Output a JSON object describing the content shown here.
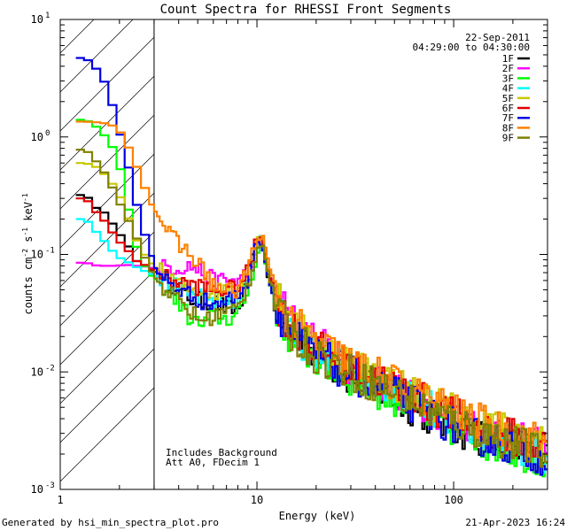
{
  "chart_data": {
    "type": "line",
    "title": "Count Spectra for RHESSI Front Segments",
    "xlabel": "Energy (keV)",
    "ylabel": "counts cm^-2 s^-1 keV^-1",
    "xscale": "log",
    "yscale": "log",
    "xlim": [
      1,
      300
    ],
    "ylim": [
      0.001,
      10
    ],
    "x_ticks": [
      {
        "value": 1,
        "label": "1"
      },
      {
        "value": 10,
        "label": "10"
      },
      {
        "value": 100,
        "label": "100"
      }
    ],
    "y_ticks": [
      {
        "value": 0.001,
        "base": "10",
        "exp": "-3"
      },
      {
        "value": 0.01,
        "base": "10",
        "exp": "-2"
      },
      {
        "value": 0.1,
        "base": "10",
        "exp": "-1"
      },
      {
        "value": 1,
        "base": "10",
        "exp": "0"
      },
      {
        "value": 10,
        "base": "10",
        "exp": "1"
      }
    ],
    "shaded_region_kev": [
      1,
      3
    ],
    "date": "22-Sep-2011",
    "time_range": "04:29:00 to 04:30:00",
    "annotations": [
      "Includes Background",
      "Att A0, FDecim 1"
    ],
    "series": [
      {
        "name": "1F",
        "color": "#000000",
        "low": [
          [
            1.2,
            0.32
          ],
          [
            1.35,
            0.32
          ],
          [
            1.55,
            0.24
          ],
          [
            1.75,
            0.22
          ],
          [
            1.95,
            0.15
          ],
          [
            2.15,
            0.14
          ],
          [
            2.35,
            0.09
          ],
          [
            2.6,
            0.085
          ],
          [
            2.8,
            0.075
          ],
          [
            3.1,
            0.07
          ],
          [
            3.5,
            0.06
          ],
          [
            4,
            0.05
          ],
          [
            4.6,
            0.042
          ],
          [
            5.3,
            0.04
          ],
          [
            6,
            0.04
          ],
          [
            7,
            0.035
          ],
          [
            8,
            0.033
          ],
          [
            9,
            0.06
          ],
          [
            10,
            0.12
          ],
          [
            10.6,
            0.13
          ],
          [
            11.5,
            0.06
          ],
          [
            13,
            0.03
          ],
          [
            15,
            0.02
          ],
          [
            20,
            0.014
          ],
          [
            30,
            0.009
          ],
          [
            50,
            0.006
          ],
          [
            80,
            0.004
          ],
          [
            120,
            0.003
          ],
          [
            200,
            0.0023
          ],
          [
            290,
            0.002
          ]
        ]
      },
      {
        "name": "2F",
        "color": "#ff00ff",
        "low": [
          [
            1.2,
            0.085
          ],
          [
            1.35,
            0.085
          ],
          [
            1.55,
            0.08
          ],
          [
            1.75,
            0.08
          ],
          [
            1.95,
            0.08
          ],
          [
            2.15,
            0.082
          ],
          [
            2.35,
            0.08
          ],
          [
            2.6,
            0.08
          ],
          [
            2.8,
            0.078
          ],
          [
            3.1,
            0.075
          ],
          [
            3.5,
            0.078
          ],
          [
            4,
            0.078
          ],
          [
            4.6,
            0.08
          ],
          [
            5.3,
            0.07
          ],
          [
            6,
            0.06
          ],
          [
            7,
            0.06
          ],
          [
            8,
            0.06
          ],
          [
            9,
            0.07
          ],
          [
            10,
            0.12
          ],
          [
            10.6,
            0.14
          ],
          [
            11.5,
            0.07
          ],
          [
            13,
            0.04
          ],
          [
            15,
            0.028
          ],
          [
            20,
            0.018
          ],
          [
            30,
            0.011
          ],
          [
            50,
            0.007
          ],
          [
            80,
            0.0048
          ],
          [
            120,
            0.0036
          ],
          [
            200,
            0.0027
          ],
          [
            290,
            0.0022
          ]
        ]
      },
      {
        "name": "3F",
        "color": "#00ff00",
        "low": [
          [
            1.2,
            1.4
          ],
          [
            1.35,
            1.4
          ],
          [
            1.55,
            1.2
          ],
          [
            1.75,
            0.95
          ],
          [
            1.95,
            0.7
          ],
          [
            2.15,
            0.35
          ],
          [
            2.35,
            0.14
          ],
          [
            2.6,
            0.09
          ],
          [
            2.8,
            0.07
          ],
          [
            3.1,
            0.06
          ],
          [
            3.5,
            0.05
          ],
          [
            4,
            0.04
          ],
          [
            4.6,
            0.028
          ],
          [
            5.3,
            0.025
          ],
          [
            6,
            0.03
          ],
          [
            7,
            0.028
          ],
          [
            8,
            0.03
          ],
          [
            9,
            0.05
          ],
          [
            10,
            0.1
          ],
          [
            10.6,
            0.12
          ],
          [
            11.5,
            0.06
          ],
          [
            13,
            0.03
          ],
          [
            15,
            0.019
          ],
          [
            20,
            0.013
          ],
          [
            30,
            0.009
          ],
          [
            50,
            0.006
          ],
          [
            80,
            0.004
          ],
          [
            120,
            0.0028
          ],
          [
            200,
            0.0022
          ],
          [
            290,
            0.0018
          ]
        ]
      },
      {
        "name": "4F",
        "color": "#00ffff",
        "low": [
          [
            1.2,
            0.2
          ],
          [
            1.35,
            0.2
          ],
          [
            1.55,
            0.15
          ],
          [
            1.75,
            0.12
          ],
          [
            1.95,
            0.095
          ],
          [
            2.15,
            0.09
          ],
          [
            2.35,
            0.08
          ],
          [
            2.6,
            0.075
          ],
          [
            2.8,
            0.07
          ],
          [
            3.1,
            0.065
          ],
          [
            3.5,
            0.06
          ],
          [
            4,
            0.05
          ],
          [
            4.6,
            0.045
          ],
          [
            5.3,
            0.042
          ],
          [
            6,
            0.04
          ],
          [
            7,
            0.04
          ],
          [
            8,
            0.042
          ],
          [
            9,
            0.065
          ],
          [
            10,
            0.13
          ],
          [
            10.6,
            0.15
          ],
          [
            11.5,
            0.065
          ],
          [
            13,
            0.034
          ],
          [
            15,
            0.022
          ],
          [
            20,
            0.015
          ],
          [
            30,
            0.01
          ],
          [
            50,
            0.0068
          ],
          [
            80,
            0.0046
          ],
          [
            120,
            0.0034
          ],
          [
            200,
            0.0025
          ],
          [
            290,
            0.002
          ]
        ]
      },
      {
        "name": "5F",
        "color": "#c8c800",
        "low": [
          [
            1.2,
            0.6
          ],
          [
            1.35,
            0.6
          ],
          [
            1.55,
            0.55
          ],
          [
            1.75,
            0.45
          ],
          [
            1.95,
            0.35
          ],
          [
            2.15,
            0.25
          ],
          [
            2.35,
            0.15
          ],
          [
            2.6,
            0.11
          ],
          [
            2.8,
            0.09
          ],
          [
            3.1,
            0.075
          ],
          [
            3.5,
            0.065
          ],
          [
            4,
            0.055
          ],
          [
            4.6,
            0.05
          ],
          [
            5.3,
            0.05
          ],
          [
            6,
            0.048
          ],
          [
            7,
            0.05
          ],
          [
            8,
            0.055
          ],
          [
            9,
            0.08
          ],
          [
            10,
            0.13
          ],
          [
            10.6,
            0.15
          ],
          [
            11.5,
            0.075
          ],
          [
            13,
            0.04
          ],
          [
            15,
            0.026
          ],
          [
            20,
            0.017
          ],
          [
            30,
            0.012
          ],
          [
            50,
            0.008
          ],
          [
            80,
            0.0055
          ],
          [
            120,
            0.004
          ],
          [
            200,
            0.003
          ],
          [
            290,
            0.0024
          ]
        ]
      },
      {
        "name": "6F",
        "color": "#e00000",
        "low": [
          [
            1.2,
            0.3
          ],
          [
            1.35,
            0.3
          ],
          [
            1.55,
            0.22
          ],
          [
            1.75,
            0.18
          ],
          [
            1.95,
            0.13
          ],
          [
            2.15,
            0.12
          ],
          [
            2.35,
            0.09
          ],
          [
            2.6,
            0.085
          ],
          [
            2.8,
            0.078
          ],
          [
            3.1,
            0.07
          ],
          [
            3.5,
            0.062
          ],
          [
            4,
            0.058
          ],
          [
            4.6,
            0.055
          ],
          [
            5.3,
            0.052
          ],
          [
            6,
            0.05
          ],
          [
            7,
            0.05
          ],
          [
            8,
            0.052
          ],
          [
            9,
            0.07
          ],
          [
            10,
            0.13
          ],
          [
            10.6,
            0.145
          ],
          [
            11.5,
            0.07
          ],
          [
            13,
            0.036
          ],
          [
            15,
            0.024
          ],
          [
            20,
            0.016
          ],
          [
            30,
            0.011
          ],
          [
            50,
            0.0075
          ],
          [
            80,
            0.005
          ],
          [
            120,
            0.0037
          ],
          [
            200,
            0.0028
          ],
          [
            290,
            0.0023
          ]
        ]
      },
      {
        "name": "7F",
        "color": "#0000e0",
        "low": [
          [
            1.2,
            4.7
          ],
          [
            1.35,
            4.7
          ],
          [
            1.55,
            3.7
          ],
          [
            1.75,
            2.6
          ],
          [
            1.95,
            1.3
          ],
          [
            2.15,
            0.75
          ],
          [
            2.35,
            0.35
          ],
          [
            2.6,
            0.18
          ],
          [
            2.8,
            0.12
          ],
          [
            3.1,
            0.07
          ],
          [
            3.5,
            0.06
          ],
          [
            4,
            0.05
          ],
          [
            4.6,
            0.045
          ],
          [
            5.3,
            0.04
          ],
          [
            6,
            0.038
          ],
          [
            7,
            0.04
          ],
          [
            8,
            0.045
          ],
          [
            9,
            0.06
          ],
          [
            10,
            0.12
          ],
          [
            10.6,
            0.13
          ],
          [
            11.5,
            0.06
          ],
          [
            13,
            0.032
          ],
          [
            15,
            0.021
          ],
          [
            20,
            0.014
          ],
          [
            30,
            0.0095
          ],
          [
            50,
            0.0065
          ],
          [
            80,
            0.0042
          ],
          [
            120,
            0.003
          ],
          [
            200,
            0.0023
          ],
          [
            290,
            0.0019
          ]
        ]
      },
      {
        "name": "8F",
        "color": "#ff8000",
        "low": [
          [
            1.2,
            1.35
          ],
          [
            1.35,
            1.35
          ],
          [
            1.55,
            1.33
          ],
          [
            1.75,
            1.3
          ],
          [
            1.95,
            1.2
          ],
          [
            2.15,
            0.95
          ],
          [
            2.35,
            0.65
          ],
          [
            2.6,
            0.45
          ],
          [
            2.8,
            0.3
          ],
          [
            3.1,
            0.22
          ],
          [
            3.5,
            0.16
          ],
          [
            4,
            0.12
          ],
          [
            4.6,
            0.1
          ],
          [
            5.3,
            0.075
          ],
          [
            6,
            0.055
          ],
          [
            7,
            0.048
          ],
          [
            8,
            0.05
          ],
          [
            9,
            0.075
          ],
          [
            10,
            0.13
          ],
          [
            10.6,
            0.15
          ],
          [
            11.5,
            0.08
          ],
          [
            13,
            0.04
          ],
          [
            15,
            0.027
          ],
          [
            20,
            0.018
          ],
          [
            30,
            0.012
          ],
          [
            50,
            0.008
          ],
          [
            80,
            0.0055
          ],
          [
            120,
            0.004
          ],
          [
            200,
            0.003
          ],
          [
            290,
            0.0025
          ]
        ]
      },
      {
        "name": "9F",
        "color": "#808000",
        "low": [
          [
            1.2,
            0.78
          ],
          [
            1.35,
            0.78
          ],
          [
            1.55,
            0.6
          ],
          [
            1.75,
            0.45
          ],
          [
            1.95,
            0.3
          ],
          [
            2.15,
            0.22
          ],
          [
            2.35,
            0.16
          ],
          [
            2.6,
            0.11
          ],
          [
            2.8,
            0.08
          ],
          [
            3.1,
            0.06
          ],
          [
            3.5,
            0.05
          ],
          [
            4,
            0.04
          ],
          [
            4.6,
            0.032
          ],
          [
            5.3,
            0.027
          ],
          [
            6,
            0.03
          ],
          [
            7,
            0.032
          ],
          [
            8,
            0.035
          ],
          [
            9,
            0.055
          ],
          [
            10,
            0.11
          ],
          [
            10.6,
            0.13
          ],
          [
            11.5,
            0.065
          ],
          [
            13,
            0.032
          ],
          [
            15,
            0.021
          ],
          [
            20,
            0.014
          ],
          [
            30,
            0.0098
          ],
          [
            50,
            0.0067
          ],
          [
            80,
            0.0045
          ],
          [
            120,
            0.0033
          ],
          [
            200,
            0.0025
          ],
          [
            290,
            0.002
          ]
        ]
      }
    ]
  },
  "footer": {
    "left": "Generated by hsi_min_spectra_plot.pro",
    "right": "21-Apr-2023 16:24"
  }
}
